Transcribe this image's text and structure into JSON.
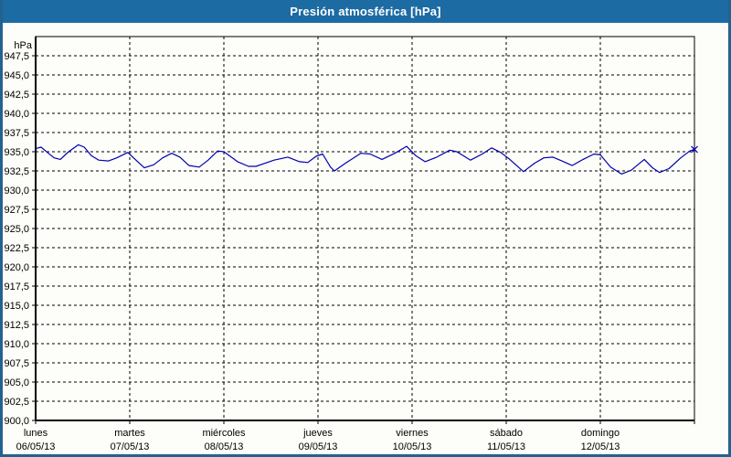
{
  "window": {
    "title": "Presión atmosférica [hPa]"
  },
  "colors": {
    "header_bg": "#1c6ba3",
    "panel_border": "#23628f",
    "panel_bg": "#fdfdf9",
    "grid": "#000000",
    "axis": "#000000",
    "series": "#0000b0",
    "title_text": "#ffffff",
    "label_text": "#000000"
  },
  "chart_data": {
    "type": "line",
    "title": "Presión atmosférica [hPa]",
    "y_unit_label": "hPa",
    "ylim": [
      900,
      950
    ],
    "y_tick_step": 2.5,
    "y_tick_labels": [
      "947,5",
      "945,0",
      "942,5",
      "940,0",
      "937,5",
      "935,0",
      "932,5",
      "930,0",
      "927,5",
      "925,0",
      "922,5",
      "920,0",
      "917,5",
      "915,0",
      "912,5",
      "910,0",
      "907,5",
      "905,0",
      "902,5",
      "900,0"
    ],
    "y_tick_values": [
      947.5,
      945.0,
      942.5,
      940.0,
      937.5,
      935.0,
      932.5,
      930.0,
      927.5,
      925.0,
      922.5,
      920.0,
      917.5,
      915.0,
      912.5,
      910.0,
      907.5,
      905.0,
      902.5,
      900.0
    ],
    "x_hours_range": [
      0,
      168
    ],
    "x_day_width_hours": 24,
    "x_days": [
      {
        "weekday": "lunes",
        "date": "06/05/13"
      },
      {
        "weekday": "martes",
        "date": "07/05/13"
      },
      {
        "weekday": "miércoles",
        "date": "08/05/13"
      },
      {
        "weekday": "jueves",
        "date": "09/05/13"
      },
      {
        "weekday": "viernes",
        "date": "10/05/13"
      },
      {
        "weekday": "sábado",
        "date": "11/05/13"
      },
      {
        "weekday": "domingo",
        "date": "12/05/13"
      }
    ],
    "grid": "dashed",
    "legend": "none",
    "series": [
      {
        "name": "Presión atmosférica",
        "color": "#0000b0",
        "end_marker": "x",
        "points": [
          [
            0,
            935.4
          ],
          [
            1.4,
            935.6
          ],
          [
            3,
            934.9
          ],
          [
            4.7,
            934.2
          ],
          [
            6.3,
            934.0
          ],
          [
            8.4,
            935.0
          ],
          [
            10.9,
            935.9
          ],
          [
            12.4,
            935.6
          ],
          [
            14.2,
            934.5
          ],
          [
            16.1,
            933.9
          ],
          [
            18.6,
            933.8
          ],
          [
            20.7,
            934.2
          ],
          [
            23.5,
            934.9
          ],
          [
            25.4,
            934.0
          ],
          [
            27.7,
            932.9
          ],
          [
            30.1,
            933.3
          ],
          [
            32.4,
            934.2
          ],
          [
            34.7,
            934.8
          ],
          [
            36.8,
            934.3
          ],
          [
            39.1,
            933.2
          ],
          [
            41.7,
            933.0
          ],
          [
            44,
            933.9
          ],
          [
            46.4,
            935.1
          ],
          [
            48,
            935.0
          ],
          [
            49.6,
            934.4
          ],
          [
            51.5,
            933.7
          ],
          [
            54.3,
            933.1
          ],
          [
            56.2,
            933.1
          ],
          [
            58.5,
            933.5
          ],
          [
            60.8,
            933.9
          ],
          [
            64.3,
            934.3
          ],
          [
            65.8,
            934.0
          ],
          [
            67.3,
            933.7
          ],
          [
            69.4,
            933.6
          ],
          [
            71.5,
            934.4
          ],
          [
            73.2,
            934.7
          ],
          [
            75.2,
            933.0
          ],
          [
            76.2,
            932.5
          ],
          [
            79,
            933.5
          ],
          [
            82.9,
            934.8
          ],
          [
            85.3,
            934.7
          ],
          [
            88.3,
            934.0
          ],
          [
            91.6,
            934.8
          ],
          [
            94.6,
            935.7
          ],
          [
            96.9,
            934.5
          ],
          [
            99.3,
            933.7
          ],
          [
            102.3,
            934.3
          ],
          [
            105.6,
            935.2
          ],
          [
            107.4,
            935.0
          ],
          [
            110.9,
            933.9
          ],
          [
            113.9,
            934.7
          ],
          [
            116.3,
            935.5
          ],
          [
            118.6,
            934.9
          ],
          [
            120.9,
            934.0
          ],
          [
            124.4,
            932.4
          ],
          [
            127.2,
            933.5
          ],
          [
            129.6,
            934.2
          ],
          [
            131.9,
            934.3
          ],
          [
            134.2,
            933.8
          ],
          [
            136.8,
            933.2
          ],
          [
            139.6,
            934.0
          ],
          [
            142.4,
            934.7
          ],
          [
            144,
            934.6
          ],
          [
            146.6,
            933.0
          ],
          [
            149.4,
            932.1
          ],
          [
            151.9,
            932.6
          ],
          [
            155.2,
            934.0
          ],
          [
            157.3,
            932.9
          ],
          [
            159.1,
            932.3
          ],
          [
            161.5,
            932.8
          ],
          [
            164.5,
            934.2
          ],
          [
            166.8,
            935.1
          ],
          [
            168,
            935.3
          ]
        ]
      }
    ]
  }
}
